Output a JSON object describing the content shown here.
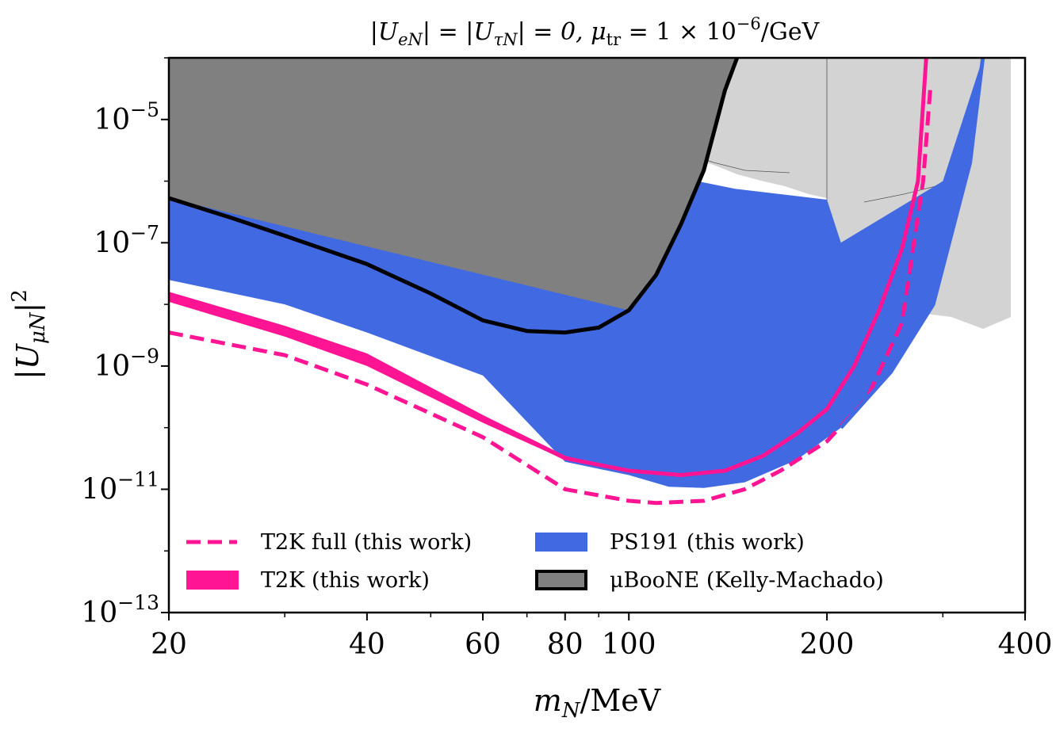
{
  "chart_data": {
    "type": "area",
    "title": "|U_eN| = |U_τN| = 0, μ_tr = 1 × 10^-6/GeV",
    "xlabel": "m_N/MeV",
    "ylabel": "|U_μN|^2",
    "x_scale": "log",
    "y_scale": "log",
    "xlim": [
      20,
      400
    ],
    "ylim": [
      1e-13,
      0.0001
    ],
    "x_ticks": [
      20,
      40,
      60,
      80,
      100,
      200,
      400
    ],
    "x_tick_labels": [
      "20",
      "40",
      "60",
      "80",
      "100",
      "200",
      "400"
    ],
    "y_ticks": [
      1e-13,
      1e-11,
      1e-09,
      1e-07,
      1e-05
    ],
    "y_tick_labels": [
      {
        "base": "10",
        "exp": "−13"
      },
      {
        "base": "10",
        "exp": "−11"
      },
      {
        "base": "10",
        "exp": "−9"
      },
      {
        "base": "10",
        "exp": "−7"
      },
      {
        "base": "10",
        "exp": "−5"
      }
    ],
    "grid": false,
    "legend_position": "bottom-left",
    "legend": [
      {
        "label": "T2K full (this work)",
        "style": "dashed-line",
        "color": "#ff1493"
      },
      {
        "label": "PS191 (this work)",
        "style": "filled",
        "color": "#4169e1"
      },
      {
        "label": "T2K (this work)",
        "style": "filled",
        "color": "#ff1493"
      },
      {
        "label": "μBooNE (Kelly-Machado)",
        "style": "filled-outlined",
        "color": "#808080"
      }
    ],
    "colors": {
      "t2k": "#ff1493",
      "ps191": "#4169e1",
      "uboone": "#808080",
      "existing": "#d3d3d3",
      "frame": "#000000"
    },
    "series": [
      {
        "name": "μBooNE (Kelly-Machado)",
        "type": "area",
        "boundary": [
          [
            20,
            5.3e-07
          ],
          [
            25,
            2.5e-07
          ],
          [
            30,
            1.3e-07
          ],
          [
            40,
            4.5e-08
          ],
          [
            50,
            1.5e-08
          ],
          [
            60,
            5.5e-09
          ],
          [
            70,
            3.7e-09
          ],
          [
            80,
            3.5e-09
          ],
          [
            90,
            4.2e-09
          ],
          [
            100,
            8e-09
          ],
          [
            110,
            3e-08
          ],
          [
            120,
            2e-07
          ],
          [
            130,
            1.5e-06
          ],
          [
            140,
            3e-05
          ],
          [
            146,
            0.0001
          ]
        ]
      },
      {
        "name": "PS191 (this work)",
        "type": "area",
        "lower": [
          [
            20,
            2.5e-08
          ],
          [
            30,
            1e-08
          ],
          [
            40,
            3.5e-09
          ],
          [
            60,
            7e-10
          ],
          [
            80,
            2.8e-11
          ],
          [
            100,
            1.7e-11
          ],
          [
            115,
            1.1e-11
          ],
          [
            130,
            1.05e-11
          ],
          [
            150,
            1.3e-11
          ],
          [
            180,
            3e-11
          ],
          [
            210,
            1e-10
          ],
          [
            250,
            8e-10
          ],
          [
            290,
            1e-08
          ],
          [
            330,
            2e-06
          ],
          [
            345,
            0.0001
          ]
        ],
        "upper": [
          [
            20,
            5.3e-07
          ],
          [
            100,
            8e-09
          ],
          [
            110,
            3e-08
          ],
          [
            120,
            2e-07
          ],
          [
            127,
            1e-06
          ],
          [
            145,
            7.5e-07
          ],
          [
            200,
            5e-07
          ],
          [
            210,
            1e-07
          ],
          [
            300,
            1e-06
          ],
          [
            345,
            0.0001
          ]
        ]
      },
      {
        "name": "T2K (this work)",
        "type": "area",
        "lower": [
          [
            20,
            1.1e-08
          ],
          [
            30,
            3e-09
          ],
          [
            40,
            1e-09
          ],
          [
            60,
            1.2e-10
          ],
          [
            80,
            3e-11
          ],
          [
            100,
            2e-11
          ]
        ],
        "upper": [
          [
            20,
            1.6e-08
          ],
          [
            30,
            4.5e-09
          ],
          [
            40,
            1.6e-09
          ],
          [
            60,
            1.6e-10
          ],
          [
            80,
            3.5e-11
          ],
          [
            100,
            2e-11
          ]
        ]
      },
      {
        "name": "T2K",
        "type": "line",
        "points": [
          [
            20,
            1.4e-08
          ],
          [
            40,
            1.3e-09
          ],
          [
            60,
            1.4e-10
          ],
          [
            80,
            3.2e-11
          ],
          [
            100,
            2e-11
          ],
          [
            120,
            1.7e-11
          ],
          [
            140,
            2e-11
          ],
          [
            160,
            3.5e-11
          ],
          [
            180,
            8e-11
          ],
          [
            200,
            2e-10
          ],
          [
            220,
            1e-09
          ],
          [
            240,
            8e-09
          ],
          [
            260,
            8e-08
          ],
          [
            275,
            1e-06
          ],
          [
            283,
            0.0001
          ]
        ]
      },
      {
        "name": "T2K full (this work)",
        "type": "line",
        "points": [
          [
            20,
            3.5e-09
          ],
          [
            30,
            1.5e-09
          ],
          [
            40,
            5e-10
          ],
          [
            60,
            7e-11
          ],
          [
            80,
            1e-11
          ],
          [
            100,
            6.5e-12
          ],
          [
            110,
            6e-12
          ],
          [
            130,
            6.5e-12
          ],
          [
            150,
            1e-11
          ],
          [
            170,
            2e-11
          ],
          [
            200,
            6e-11
          ],
          [
            230,
            3e-10
          ],
          [
            260,
            5e-09
          ],
          [
            280,
            1e-06
          ],
          [
            287,
            3e-05
          ]
        ]
      }
    ]
  }
}
